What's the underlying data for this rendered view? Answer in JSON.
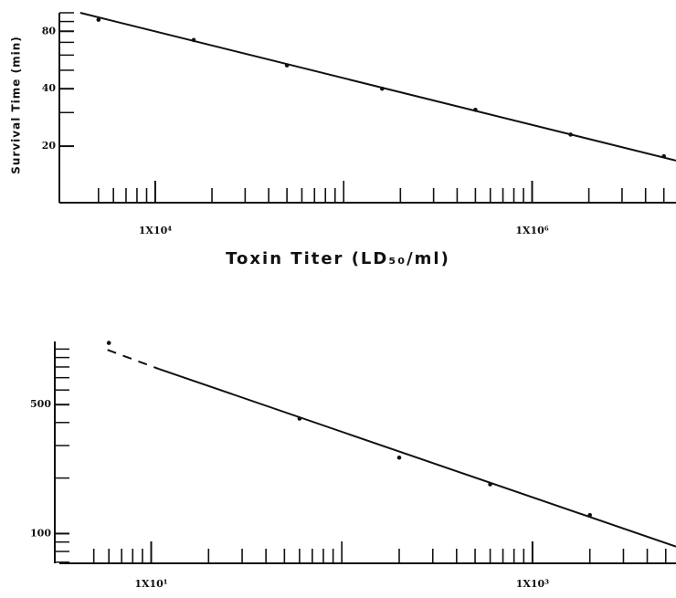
{
  "chart_data": [
    {
      "type": "scatter",
      "xscale": "log",
      "yscale": "log",
      "ylabel": "Survival Time (min)",
      "xlabel": "Toxin Titer (LD₅₀/ml)",
      "xlim": [
        3100,
        5800000
      ],
      "ylim": [
        10,
        100
      ],
      "xticks": [
        {
          "value": 10000,
          "label": "1X10⁴"
        },
        {
          "value": 1000000,
          "label": "1X10⁶"
        }
      ],
      "xminorticks": [
        5000,
        6000,
        7000,
        8000,
        9000,
        20000,
        30000,
        40000,
        50000,
        60000,
        70000,
        80000,
        90000,
        100000,
        200000,
        300000,
        400000,
        500000,
        600000,
        700000,
        800000,
        900000,
        2000000,
        3000000,
        4000000,
        5000000
      ],
      "yticks": [
        20,
        40,
        80
      ],
      "yminorticks": [
        30,
        50,
        60,
        70,
        90,
        100
      ],
      "series": [
        {
          "mode": "markers",
          "color": "#111111",
          "x": [
            5000,
            16000,
            50000,
            160000,
            500000,
            1600000,
            5000000
          ],
          "values": [
            92,
            72,
            53,
            40,
            31,
            23,
            17.7
          ]
        },
        {
          "mode": "line",
          "color": "#111111",
          "x": [
            4000,
            5800000
          ],
          "values": [
            100,
            16.8
          ]
        }
      ]
    },
    {
      "type": "scatter",
      "xscale": "log",
      "yscale": "log",
      "xlim": [
        3.3,
        5660
      ],
      "ylim": [
        69,
        1100
      ],
      "xticks": [
        {
          "value": 10,
          "label": "1X10¹"
        },
        {
          "value": 1000,
          "label": "1X10³"
        }
      ],
      "xminorticks": [
        5,
        6,
        7,
        8,
        9,
        20,
        30,
        40,
        50,
        60,
        70,
        80,
        90,
        100,
        200,
        300,
        400,
        500,
        600,
        700,
        800,
        900,
        2000,
        3000,
        4000,
        5000
      ],
      "yticks": [
        500,
        100
      ],
      "yminorticks": [
        70,
        80,
        90,
        200,
        300,
        400,
        600,
        700,
        800,
        900,
        1000
      ],
      "series": [
        {
          "mode": "markers",
          "color": "#111111",
          "x": [
            6,
            60,
            200,
            600,
            2000
          ],
          "values": [
            1080,
            420,
            258,
            185,
            126
          ]
        },
        {
          "mode": "line",
          "color": "#111111",
          "x": [
            11,
            5660
          ],
          "values": [
            780,
            85
          ]
        },
        {
          "mode": "line",
          "dash": true,
          "color": "#111111",
          "x": [
            5.9,
            11
          ],
          "values": [
            990,
            780
          ]
        }
      ]
    }
  ]
}
